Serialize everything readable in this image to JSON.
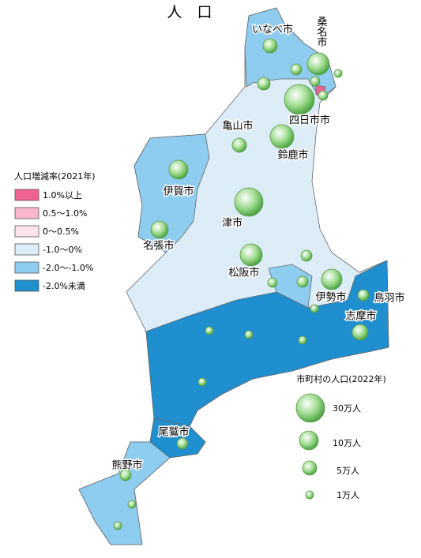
{
  "title": "人　口",
  "change_legend": {
    "title": "人口増減率(2021年)",
    "items": [
      {
        "label": "1.0%以上",
        "color": "#f06292"
      },
      {
        "label": "0.5～1.0%",
        "color": "#f8b7cc"
      },
      {
        "label": "0～0.5%",
        "color": "#fde4ec"
      },
      {
        "label": "-1.0～0%",
        "color": "#dcedf8"
      },
      {
        "label": "-2.0～-1.0%",
        "color": "#8fcdf0"
      },
      {
        "label": "-2.0%未満",
        "color": "#1f8fd0"
      }
    ]
  },
  "population_legend": {
    "title": "市町村の人口(2022年)",
    "items": [
      "30万人",
      "10万人",
      "5万人",
      "1万人"
    ]
  },
  "cities": [
    "いなべ市",
    "桑名市",
    "四日市市",
    "亀山市",
    "鈴鹿市",
    "伊賀市",
    "津市",
    "名張市",
    "松阪市",
    "伊勢市",
    "鳥羽市",
    "志摩市",
    "尾鷲市",
    "熊野市"
  ]
}
